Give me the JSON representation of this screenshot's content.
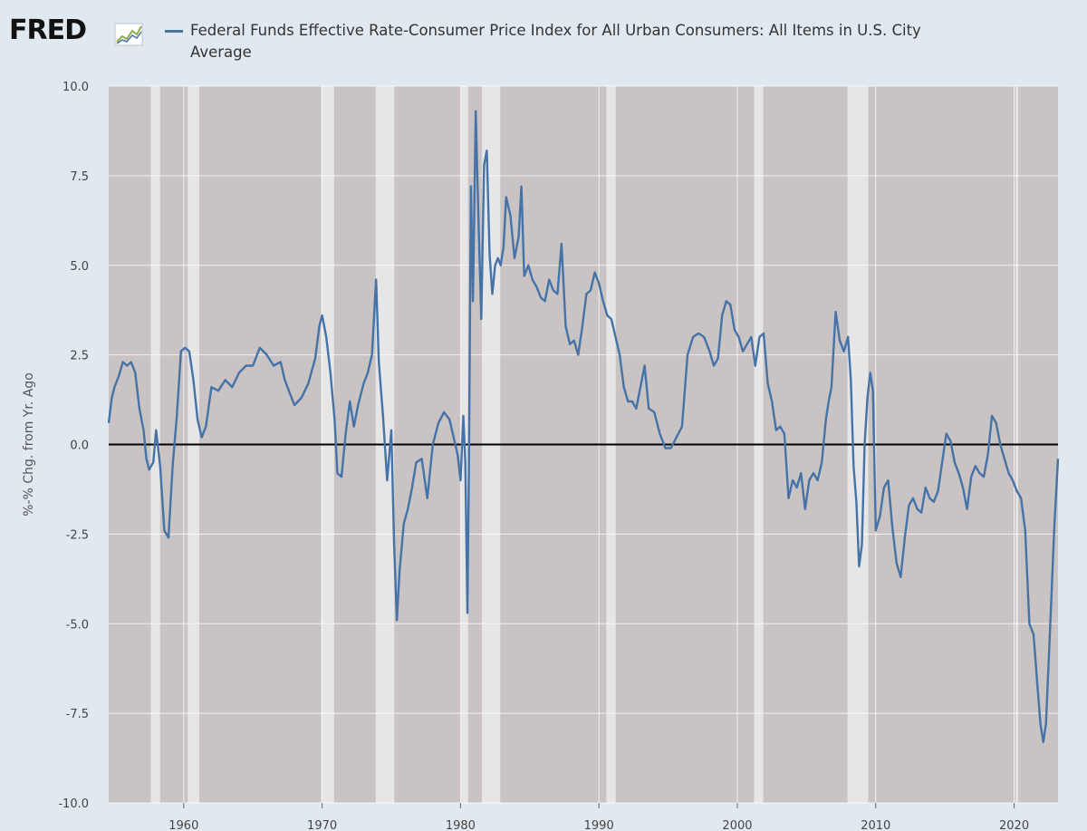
{
  "header": {
    "logo_text": "FRED",
    "legend_label": "Federal Funds Effective Rate-Consumer Price Index for All Urban Consumers: All Items in U.S. City Average"
  },
  "colors": {
    "series": "#4572a7",
    "plot_background": "#c9c3c3",
    "recession": "#e6e6e6",
    "page_background": "#e1e9f0",
    "zero_line": "#000000"
  },
  "chart_data": {
    "type": "line",
    "ylabel": "%-% Chg. from Yr. Ago",
    "xlabel": "",
    "xlim": [
      1954.58,
      2023.17
    ],
    "ylim": [
      -10.0,
      10.0
    ],
    "x_ticks": [
      1960,
      1970,
      1980,
      1990,
      2000,
      2010,
      2020
    ],
    "y_ticks": [
      10.0,
      7.5,
      5.0,
      2.5,
      0.0,
      -2.5,
      -5.0,
      -7.5,
      -10.0
    ],
    "y_tick_labels": [
      "10.0",
      "7.5",
      "5.0",
      "2.5",
      "0.0",
      "-2.5",
      "-5.0",
      "-7.5",
      "-10.0"
    ],
    "grid": true,
    "zero_line": true,
    "recessions": [
      [
        1957.62,
        1958.29
      ],
      [
        1960.29,
        1961.12
      ],
      [
        1969.92,
        1970.87
      ],
      [
        1973.87,
        1975.21
      ],
      [
        1980.04,
        1980.54
      ],
      [
        1981.54,
        1982.87
      ],
      [
        1990.54,
        1991.21
      ],
      [
        2001.21,
        2001.87
      ],
      [
        2007.96,
        2009.46
      ],
      [
        2020.12,
        2020.29
      ]
    ],
    "series": [
      {
        "x": [
          1954.58,
          1954.8,
          1955.0,
          1955.3,
          1955.6,
          1955.9,
          1956.2,
          1956.5,
          1956.8,
          1957.1,
          1957.3,
          1957.5,
          1957.8,
          1958.0,
          1958.3,
          1958.6,
          1958.9,
          1959.2,
          1959.5,
          1959.8,
          1960.1,
          1960.4,
          1960.7,
          1961.0,
          1961.3,
          1961.6,
          1962.0,
          1962.5,
          1963.0,
          1963.5,
          1964.0,
          1964.5,
          1965.0,
          1965.5,
          1966.0,
          1966.5,
          1967.0,
          1967.3,
          1967.6,
          1968.0,
          1968.5,
          1969.0,
          1969.5,
          1969.8,
          1970.0,
          1970.3,
          1970.6,
          1970.9,
          1971.1,
          1971.4,
          1971.7,
          1972.0,
          1972.3,
          1972.6,
          1973.0,
          1973.3,
          1973.6,
          1973.9,
          1974.1,
          1974.4,
          1974.7,
          1975.0,
          1975.2,
          1975.4,
          1975.6,
          1975.9,
          1976.2,
          1976.5,
          1976.8,
          1977.2,
          1977.6,
          1978.0,
          1978.4,
          1978.8,
          1979.2,
          1979.5,
          1979.8,
          1980.0,
          1980.2,
          1980.35,
          1980.5,
          1980.6,
          1980.75,
          1980.9,
          1981.1,
          1981.3,
          1981.5,
          1981.7,
          1981.9,
          1982.1,
          1982.3,
          1982.5,
          1982.7,
          1982.9,
          1983.1,
          1983.3,
          1983.6,
          1983.9,
          1984.2,
          1984.4,
          1984.6,
          1984.9,
          1985.2,
          1985.5,
          1985.8,
          1986.1,
          1986.4,
          1986.7,
          1987.0,
          1987.3,
          1987.6,
          1987.9,
          1988.2,
          1988.5,
          1988.8,
          1989.1,
          1989.4,
          1989.7,
          1990.0,
          1990.3,
          1990.6,
          1990.9,
          1991.2,
          1991.5,
          1991.8,
          1992.1,
          1992.4,
          1992.7,
          1993.0,
          1993.3,
          1993.6,
          1994.0,
          1994.4,
          1994.8,
          1995.2,
          1995.6,
          1996.0,
          1996.4,
          1996.8,
          1997.2,
          1997.6,
          1998.0,
          1998.3,
          1998.6,
          1998.9,
          1999.2,
          1999.5,
          1999.8,
          2000.1,
          2000.4,
          2000.7,
          2001.0,
          2001.3,
          2001.6,
          2001.9,
          2002.2,
          2002.5,
          2002.8,
          2003.1,
          2003.4,
          2003.7,
          2004.0,
          2004.3,
          2004.6,
          2004.9,
          2005.2,
          2005.5,
          2005.8,
          2006.1,
          2006.4,
          2006.6,
          2006.8,
          2007.1,
          2007.4,
          2007.7,
          2008.0,
          2008.2,
          2008.4,
          2008.6,
          2008.8,
          2009.0,
          2009.2,
          2009.4,
          2009.6,
          2009.8,
          2010.0,
          2010.3,
          2010.6,
          2010.9,
          2011.2,
          2011.5,
          2011.8,
          2012.1,
          2012.4,
          2012.7,
          2013.0,
          2013.3,
          2013.6,
          2013.9,
          2014.2,
          2014.5,
          2014.8,
          2015.1,
          2015.4,
          2015.7,
          2016.0,
          2016.3,
          2016.6,
          2016.9,
          2017.2,
          2017.5,
          2017.8,
          2018.1,
          2018.4,
          2018.7,
          2019.0,
          2019.3,
          2019.6,
          2019.9,
          2020.2,
          2020.5,
          2020.8,
          2021.1,
          2021.4,
          2021.7,
          2021.9,
          2022.1,
          2022.3,
          2022.5,
          2022.7,
          2022.9,
          2023.17
        ],
        "values": [
          0.6,
          1.3,
          1.6,
          1.9,
          2.3,
          2.2,
          2.3,
          2.0,
          1.0,
          0.4,
          -0.4,
          -0.7,
          -0.5,
          0.4,
          -0.6,
          -2.4,
          -2.6,
          -0.6,
          0.8,
          2.6,
          2.7,
          2.6,
          1.8,
          0.7,
          0.2,
          0.5,
          1.6,
          1.5,
          1.8,
          1.6,
          2.0,
          2.2,
          2.2,
          2.7,
          2.5,
          2.2,
          2.3,
          1.8,
          1.5,
          1.1,
          1.3,
          1.7,
          2.4,
          3.3,
          3.6,
          3.0,
          2.0,
          0.7,
          -0.8,
          -0.9,
          0.3,
          1.2,
          0.5,
          1.1,
          1.7,
          2.0,
          2.5,
          4.6,
          2.3,
          0.8,
          -1.0,
          0.4,
          -2.8,
          -4.9,
          -3.5,
          -2.2,
          -1.8,
          -1.2,
          -0.5,
          -0.4,
          -1.5,
          0.0,
          0.6,
          0.9,
          0.7,
          0.2,
          -0.3,
          -1.0,
          0.8,
          -0.5,
          -4.7,
          -0.8,
          7.2,
          4.0,
          9.3,
          6.2,
          3.5,
          7.8,
          8.2,
          5.3,
          4.2,
          5.0,
          5.2,
          5.0,
          5.5,
          6.9,
          6.4,
          5.2,
          5.8,
          7.2,
          4.7,
          5.0,
          4.6,
          4.4,
          4.1,
          4.0,
          4.6,
          4.3,
          4.2,
          5.6,
          3.3,
          2.8,
          2.9,
          2.5,
          3.3,
          4.2,
          4.3,
          4.8,
          4.5,
          4.0,
          3.6,
          3.5,
          3.0,
          2.5,
          1.6,
          1.2,
          1.2,
          1.0,
          1.6,
          2.2,
          1.0,
          0.9,
          0.3,
          -0.1,
          -0.1,
          0.2,
          0.5,
          2.5,
          3.0,
          3.1,
          3.0,
          2.6,
          2.2,
          2.4,
          3.6,
          4.0,
          3.9,
          3.2,
          3.0,
          2.6,
          2.8,
          3.0,
          2.2,
          3.0,
          3.1,
          1.7,
          1.2,
          0.4,
          0.5,
          0.3,
          -1.5,
          -1.0,
          -1.2,
          -0.8,
          -1.8,
          -1.0,
          -0.8,
          -1.0,
          -0.5,
          0.7,
          1.2,
          1.6,
          3.7,
          2.9,
          2.6,
          3.0,
          1.8,
          -0.6,
          -1.6,
          -3.4,
          -2.8,
          0.0,
          1.3,
          2.0,
          1.5,
          -2.4,
          -2.0,
          -1.2,
          -1.0,
          -2.3,
          -3.3,
          -3.7,
          -2.6,
          -1.7,
          -1.5,
          -1.8,
          -1.9,
          -1.2,
          -1.5,
          -1.6,
          -1.3,
          -0.5,
          0.3,
          0.1,
          -0.5,
          -0.8,
          -1.2,
          -1.8,
          -0.9,
          -0.6,
          -0.8,
          -0.9,
          -0.3,
          0.8,
          0.6,
          0.0,
          -0.4,
          -0.8,
          -1.0,
          -1.3,
          -1.5,
          -2.4,
          -5.0,
          -5.3,
          -6.8,
          -7.8,
          -8.3,
          -7.8,
          -6.0,
          -4.2,
          -2.3,
          -0.4
        ]
      }
    ]
  }
}
